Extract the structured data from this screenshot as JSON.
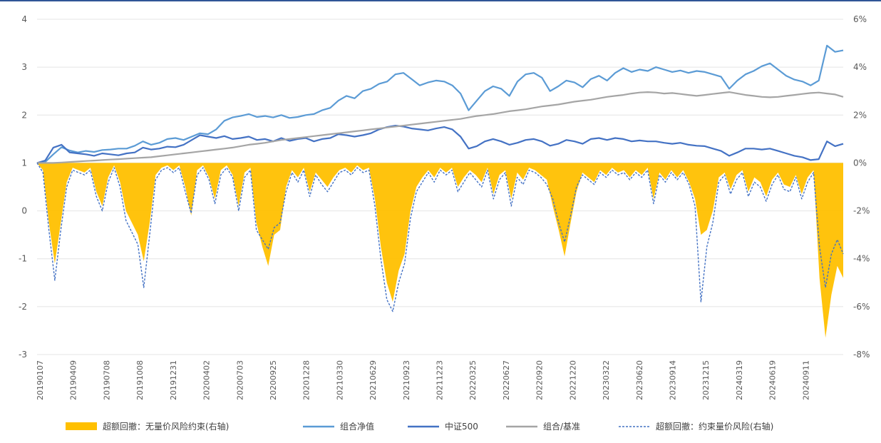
{
  "chart_data": {
    "type": "line+area",
    "title": "",
    "left_axis": {
      "ticks": [
        "4",
        "3",
        "2",
        "1",
        "0",
        "-1",
        "-2",
        "-3"
      ],
      "range": [
        -3,
        4
      ]
    },
    "right_axis": {
      "ticks": [
        "6%",
        "4%",
        "2%",
        "0%",
        "-2%",
        "-4%",
        "-6%",
        "-8%"
      ],
      "range": [
        -8,
        6
      ],
      "unit": "%"
    },
    "x_labels": [
      "20190107",
      "20190409",
      "20190708",
      "20191008",
      "20191231",
      "20200402",
      "20200703",
      "20200925",
      "20201228",
      "20210330",
      "20210629",
      "20210923",
      "20211223",
      "20220325",
      "20220627",
      "20220920",
      "20221220",
      "20230322",
      "20230620",
      "20230914",
      "20231215",
      "20240319",
      "20240619",
      "20240911"
    ],
    "series": [
      {
        "name": "超额回撤：无量价风险约束(右轴)",
        "axis": "right",
        "style": "area",
        "color": "#FFC000",
        "values": [
          0,
          -0.3,
          -2.5,
          -4.2,
          -2.5,
          -0.8,
          -0.2,
          -0.3,
          -0.4,
          -0.2,
          -1.2,
          -1.8,
          -0.6,
          -0.1,
          -0.8,
          -2.0,
          -2.5,
          -3.0,
          -4.1,
          -2.5,
          -0.5,
          -0.2,
          -0.1,
          -0.3,
          -0.1,
          -1.0,
          -2.2,
          -0.3,
          -0.1,
          -0.6,
          -1.5,
          -0.3,
          -0.1,
          -0.5,
          -1.8,
          -0.4,
          -0.2,
          -2.5,
          -3.5,
          -4.3,
          -3.0,
          -2.8,
          -1.0,
          -0.3,
          -0.6,
          -0.2,
          -1.2,
          -0.4,
          -0.7,
          -1.0,
          -0.6,
          -0.3,
          -0.2,
          -0.4,
          -0.1,
          -0.3,
          -0.2,
          -1.5,
          -3.5,
          -5.0,
          -5.8,
          -4.5,
          -3.8,
          -2.0,
          -1.0,
          -0.6,
          -0.3,
          -0.6,
          -0.2,
          -0.4,
          -0.2,
          -1.0,
          -0.6,
          -0.3,
          -0.5,
          -0.8,
          -0.2,
          -1.3,
          -0.5,
          -0.3,
          -1.5,
          -0.4,
          -0.7,
          -0.2,
          -0.3,
          -0.5,
          -0.7,
          -1.8,
          -2.8,
          -3.9,
          -2.5,
          -1.2,
          -0.4,
          -0.6,
          -0.8,
          -0.3,
          -0.5,
          -0.2,
          -0.4,
          -0.3,
          -0.6,
          -0.3,
          -0.5,
          -0.2,
          -1.5,
          -0.4,
          -0.7,
          -0.3,
          -0.6,
          -0.3,
          -0.8,
          -1.5,
          -3.0,
          -2.8,
          -2.0,
          -0.6,
          -0.4,
          -1.1,
          -0.5,
          -0.3,
          -1.2,
          -0.6,
          -0.8,
          -1.4,
          -0.7,
          -0.4,
          -0.9,
          -1.0,
          -0.5,
          -1.3,
          -0.6,
          -0.3,
          -4.8,
          -7.3,
          -5.5,
          -4.3,
          -4.8
        ]
      },
      {
        "name": "组合净值",
        "axis": "left",
        "style": "line",
        "color": "#5B9BD5",
        "values": [
          1.0,
          1.02,
          1.18,
          1.33,
          1.26,
          1.22,
          1.25,
          1.23,
          1.27,
          1.28,
          1.3,
          1.3,
          1.36,
          1.45,
          1.38,
          1.42,
          1.5,
          1.52,
          1.48,
          1.55,
          1.62,
          1.6,
          1.7,
          1.88,
          1.95,
          1.98,
          2.02,
          1.96,
          1.98,
          1.95,
          2.0,
          1.94,
          1.96,
          2.0,
          2.02,
          2.1,
          2.15,
          2.3,
          2.4,
          2.35,
          2.5,
          2.55,
          2.65,
          2.7,
          2.85,
          2.88,
          2.75,
          2.62,
          2.68,
          2.72,
          2.7,
          2.62,
          2.45,
          2.1,
          2.3,
          2.5,
          2.6,
          2.55,
          2.4,
          2.7,
          2.85,
          2.88,
          2.78,
          2.5,
          2.6,
          2.72,
          2.68,
          2.58,
          2.75,
          2.82,
          2.72,
          2.88,
          2.98,
          2.9,
          2.95,
          2.92,
          3.0,
          2.95,
          2.9,
          2.93,
          2.88,
          2.92,
          2.9,
          2.85,
          2.8,
          2.55,
          2.72,
          2.85,
          2.92,
          3.02,
          3.08,
          2.95,
          2.82,
          2.74,
          2.7,
          2.62,
          2.72,
          3.45,
          3.32,
          3.35
        ]
      },
      {
        "name": "中证500",
        "axis": "left",
        "style": "line",
        "color": "#4472C4",
        "values": [
          1.0,
          1.05,
          1.32,
          1.38,
          1.22,
          1.2,
          1.18,
          1.15,
          1.2,
          1.18,
          1.16,
          1.2,
          1.22,
          1.32,
          1.28,
          1.3,
          1.34,
          1.33,
          1.38,
          1.48,
          1.58,
          1.55,
          1.52,
          1.56,
          1.5,
          1.52,
          1.55,
          1.48,
          1.5,
          1.45,
          1.52,
          1.46,
          1.5,
          1.52,
          1.45,
          1.5,
          1.52,
          1.6,
          1.58,
          1.55,
          1.58,
          1.62,
          1.7,
          1.75,
          1.78,
          1.76,
          1.72,
          1.7,
          1.68,
          1.72,
          1.75,
          1.7,
          1.55,
          1.3,
          1.35,
          1.45,
          1.5,
          1.45,
          1.38,
          1.42,
          1.48,
          1.5,
          1.45,
          1.36,
          1.4,
          1.48,
          1.45,
          1.4,
          1.5,
          1.52,
          1.48,
          1.52,
          1.5,
          1.45,
          1.47,
          1.45,
          1.45,
          1.42,
          1.4,
          1.42,
          1.38,
          1.36,
          1.35,
          1.3,
          1.25,
          1.15,
          1.22,
          1.3,
          1.3,
          1.28,
          1.3,
          1.25,
          1.2,
          1.15,
          1.12,
          1.06,
          1.08,
          1.45,
          1.35,
          1.4
        ]
      },
      {
        "name": "组合/基准",
        "axis": "left",
        "style": "line",
        "color": "#A5A5A5",
        "values": [
          1.0,
          1.0,
          1.0,
          1.01,
          1.02,
          1.03,
          1.04,
          1.05,
          1.06,
          1.07,
          1.08,
          1.09,
          1.1,
          1.11,
          1.12,
          1.14,
          1.16,
          1.18,
          1.2,
          1.22,
          1.24,
          1.26,
          1.28,
          1.3,
          1.32,
          1.35,
          1.38,
          1.4,
          1.42,
          1.45,
          1.48,
          1.5,
          1.52,
          1.54,
          1.56,
          1.58,
          1.6,
          1.62,
          1.64,
          1.66,
          1.68,
          1.7,
          1.72,
          1.74,
          1.76,
          1.78,
          1.8,
          1.82,
          1.84,
          1.86,
          1.88,
          1.9,
          1.92,
          1.95,
          1.98,
          2.0,
          2.02,
          2.05,
          2.08,
          2.1,
          2.12,
          2.15,
          2.18,
          2.2,
          2.22,
          2.25,
          2.28,
          2.3,
          2.32,
          2.35,
          2.38,
          2.4,
          2.42,
          2.45,
          2.47,
          2.48,
          2.47,
          2.45,
          2.46,
          2.44,
          2.42,
          2.4,
          2.42,
          2.44,
          2.46,
          2.48,
          2.45,
          2.42,
          2.4,
          2.38,
          2.37,
          2.38,
          2.4,
          2.42,
          2.44,
          2.46,
          2.47,
          2.45,
          2.43,
          2.38
        ]
      },
      {
        "name": "超额回撤：约束量价风险(右轴)",
        "axis": "right",
        "style": "dashed-line",
        "color": "#4472C4",
        "values": [
          0,
          -0.4,
          -2.8,
          -4.9,
          -2.8,
          -1.0,
          -0.3,
          -0.4,
          -0.5,
          -0.3,
          -1.4,
          -2.0,
          -0.8,
          -0.2,
          -1.0,
          -2.4,
          -2.9,
          -3.4,
          -5.2,
          -3.0,
          -0.7,
          -0.3,
          -0.2,
          -0.4,
          -0.2,
          -1.2,
          -2.1,
          -0.5,
          -0.2,
          -0.7,
          -1.7,
          -0.5,
          -0.2,
          -0.6,
          -2.0,
          -0.6,
          -0.3,
          -2.8,
          -3.2,
          -3.6,
          -2.7,
          -2.5,
          -1.2,
          -0.4,
          -0.8,
          -0.3,
          -1.4,
          -0.5,
          -0.9,
          -1.2,
          -0.8,
          -0.4,
          -0.3,
          -0.5,
          -0.2,
          -0.4,
          -0.3,
          -1.8,
          -4.0,
          -5.7,
          -6.2,
          -5.0,
          -4.2,
          -2.3,
          -1.2,
          -0.8,
          -0.4,
          -0.8,
          -0.3,
          -0.5,
          -0.3,
          -1.2,
          -0.8,
          -0.4,
          -0.7,
          -1.0,
          -0.3,
          -1.5,
          -0.7,
          -0.4,
          -1.8,
          -0.6,
          -0.9,
          -0.3,
          -0.4,
          -0.6,
          -0.9,
          -1.5,
          -2.5,
          -3.3,
          -2.2,
          -1.0,
          -0.5,
          -0.7,
          -0.9,
          -0.4,
          -0.6,
          -0.3,
          -0.5,
          -0.4,
          -0.7,
          -0.4,
          -0.6,
          -0.3,
          -1.7,
          -0.5,
          -0.8,
          -0.4,
          -0.7,
          -0.4,
          -0.9,
          -1.8,
          -5.8,
          -3.5,
          -2.5,
          -0.8,
          -0.5,
          -1.3,
          -0.7,
          -0.4,
          -1.4,
          -0.8,
          -1.0,
          -1.6,
          -0.9,
          -0.5,
          -1.1,
          -1.2,
          -0.6,
          -1.5,
          -0.8,
          -0.4,
          -3.5,
          -5.2,
          -3.8,
          -3.2,
          -3.8
        ]
      }
    ]
  },
  "legend": [
    {
      "label": "超额回撤：无量价风险约束(右轴)",
      "kind": "area",
      "color": "#FFC000"
    },
    {
      "label": "组合净值",
      "kind": "line",
      "color": "#5B9BD5"
    },
    {
      "label": "中证500",
      "kind": "line",
      "color": "#4472C4"
    },
    {
      "label": "组合/基准",
      "kind": "line",
      "color": "#A5A5A5"
    },
    {
      "label": "超额回撤：约束量价风险(右轴)",
      "kind": "dashed",
      "color": "#4472C4"
    }
  ]
}
